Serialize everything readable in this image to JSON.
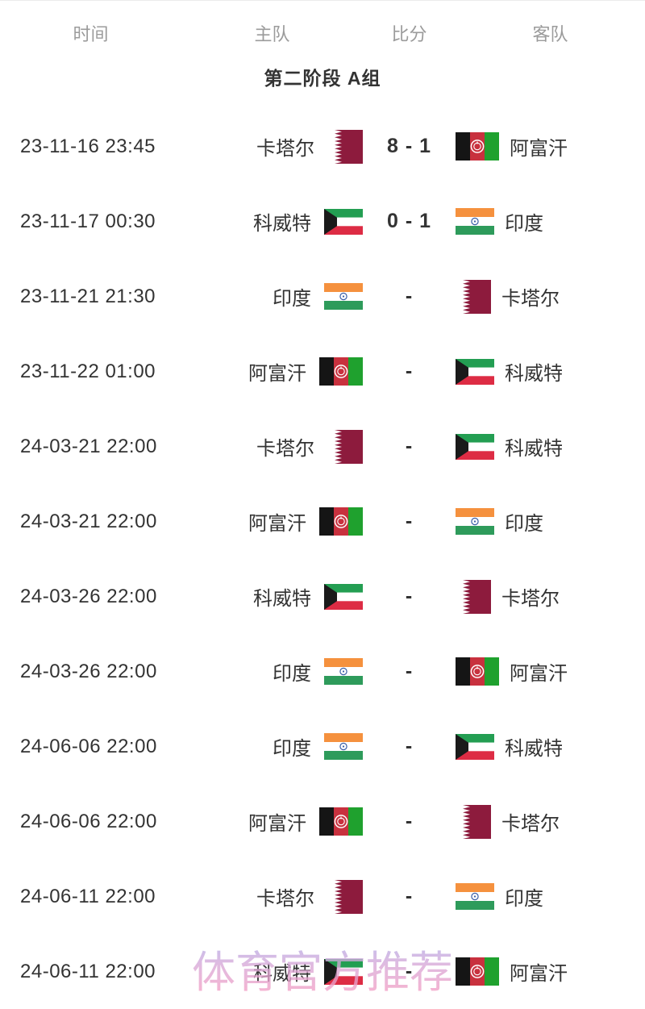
{
  "table": {
    "columns": [
      "时间",
      "主队",
      "比分",
      "客队"
    ],
    "group_title": "第二阶段 A组"
  },
  "teams": {
    "QAT": {
      "name": "卡塔尔",
      "flag": "qatar-flag"
    },
    "AFG": {
      "name": "阿富汗",
      "flag": "afghanistan-flag"
    },
    "KUW": {
      "name": "科威特",
      "flag": "kuwait-flag"
    },
    "IND": {
      "name": "印度",
      "flag": "india-flag"
    }
  },
  "matches": [
    {
      "time": "23-11-16 23:45",
      "home": "QAT",
      "score": "8 - 1",
      "away": "AFG"
    },
    {
      "time": "23-11-17 00:30",
      "home": "KUW",
      "score": "0 - 1",
      "away": "IND"
    },
    {
      "time": "23-11-21 21:30",
      "home": "IND",
      "score": "-",
      "away": "QAT"
    },
    {
      "time": "23-11-22 01:00",
      "home": "AFG",
      "score": "-",
      "away": "KUW"
    },
    {
      "time": "24-03-21 22:00",
      "home": "QAT",
      "score": "-",
      "away": "KUW"
    },
    {
      "time": "24-03-21 22:00",
      "home": "AFG",
      "score": "-",
      "away": "IND"
    },
    {
      "time": "24-03-26 22:00",
      "home": "KUW",
      "score": "-",
      "away": "QAT"
    },
    {
      "time": "24-03-26 22:00",
      "home": "IND",
      "score": "-",
      "away": "AFG"
    },
    {
      "time": "24-06-06 22:00",
      "home": "IND",
      "score": "-",
      "away": "KUW"
    },
    {
      "time": "24-06-06 22:00",
      "home": "AFG",
      "score": "-",
      "away": "QAT"
    },
    {
      "time": "24-06-11 22:00",
      "home": "QAT",
      "score": "-",
      "away": "IND"
    },
    {
      "time": "24-06-11 22:00",
      "home": "KUW",
      "score": "-",
      "away": "AFG"
    }
  ],
  "watermark": "体育官方推荐",
  "colors": {
    "text_dark": "#333333",
    "header_gray": "#9b9b9b",
    "qatar_maroon": "#8D1B3D",
    "afghanistan_black": "#151515",
    "afghanistan_red": "#C8313E",
    "afghanistan_green": "#1FA12E",
    "kuwait_green": "#239E52",
    "kuwait_red": "#DD2C44",
    "kuwait_black": "#1A1A1A",
    "india_saffron": "#F5913E",
    "india_green": "#2E9B5B",
    "india_navy": "#3A5FA8",
    "watermark_lavender": "#AEAEEA",
    "watermark_pink": "#F49FC4"
  }
}
